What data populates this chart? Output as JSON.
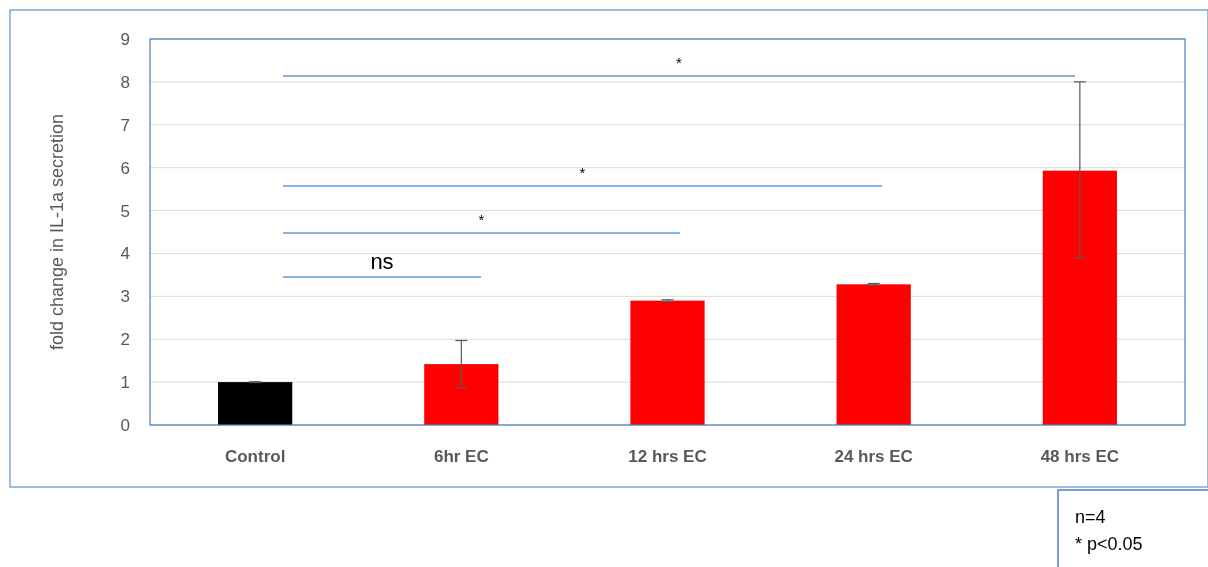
{
  "chart_data": {
    "type": "bar",
    "ylabel": "fold change in IL-1a secretion",
    "categories": [
      "Control",
      "6hr EC",
      "12 hrs EC",
      "24 hrs EC",
      "48 hrs EC"
    ],
    "values": [
      1.0,
      1.42,
      2.9,
      3.28,
      5.93
    ],
    "colors": [
      "#000000",
      "#ff0000",
      "#ff0000",
      "#ff0000",
      "#ff0000"
    ],
    "errors": [
      0.01,
      0.55,
      0.02,
      0.02,
      [
        3.9,
        8.0
      ]
    ],
    "ylim": [
      0,
      9
    ],
    "yticks": [
      0,
      1,
      2,
      3,
      4,
      5,
      6,
      7,
      8,
      9
    ],
    "grid": "y",
    "annotations": [
      "ns",
      "*",
      "*",
      "*",
      "n=4",
      "* p<0.05"
    ]
  }
}
